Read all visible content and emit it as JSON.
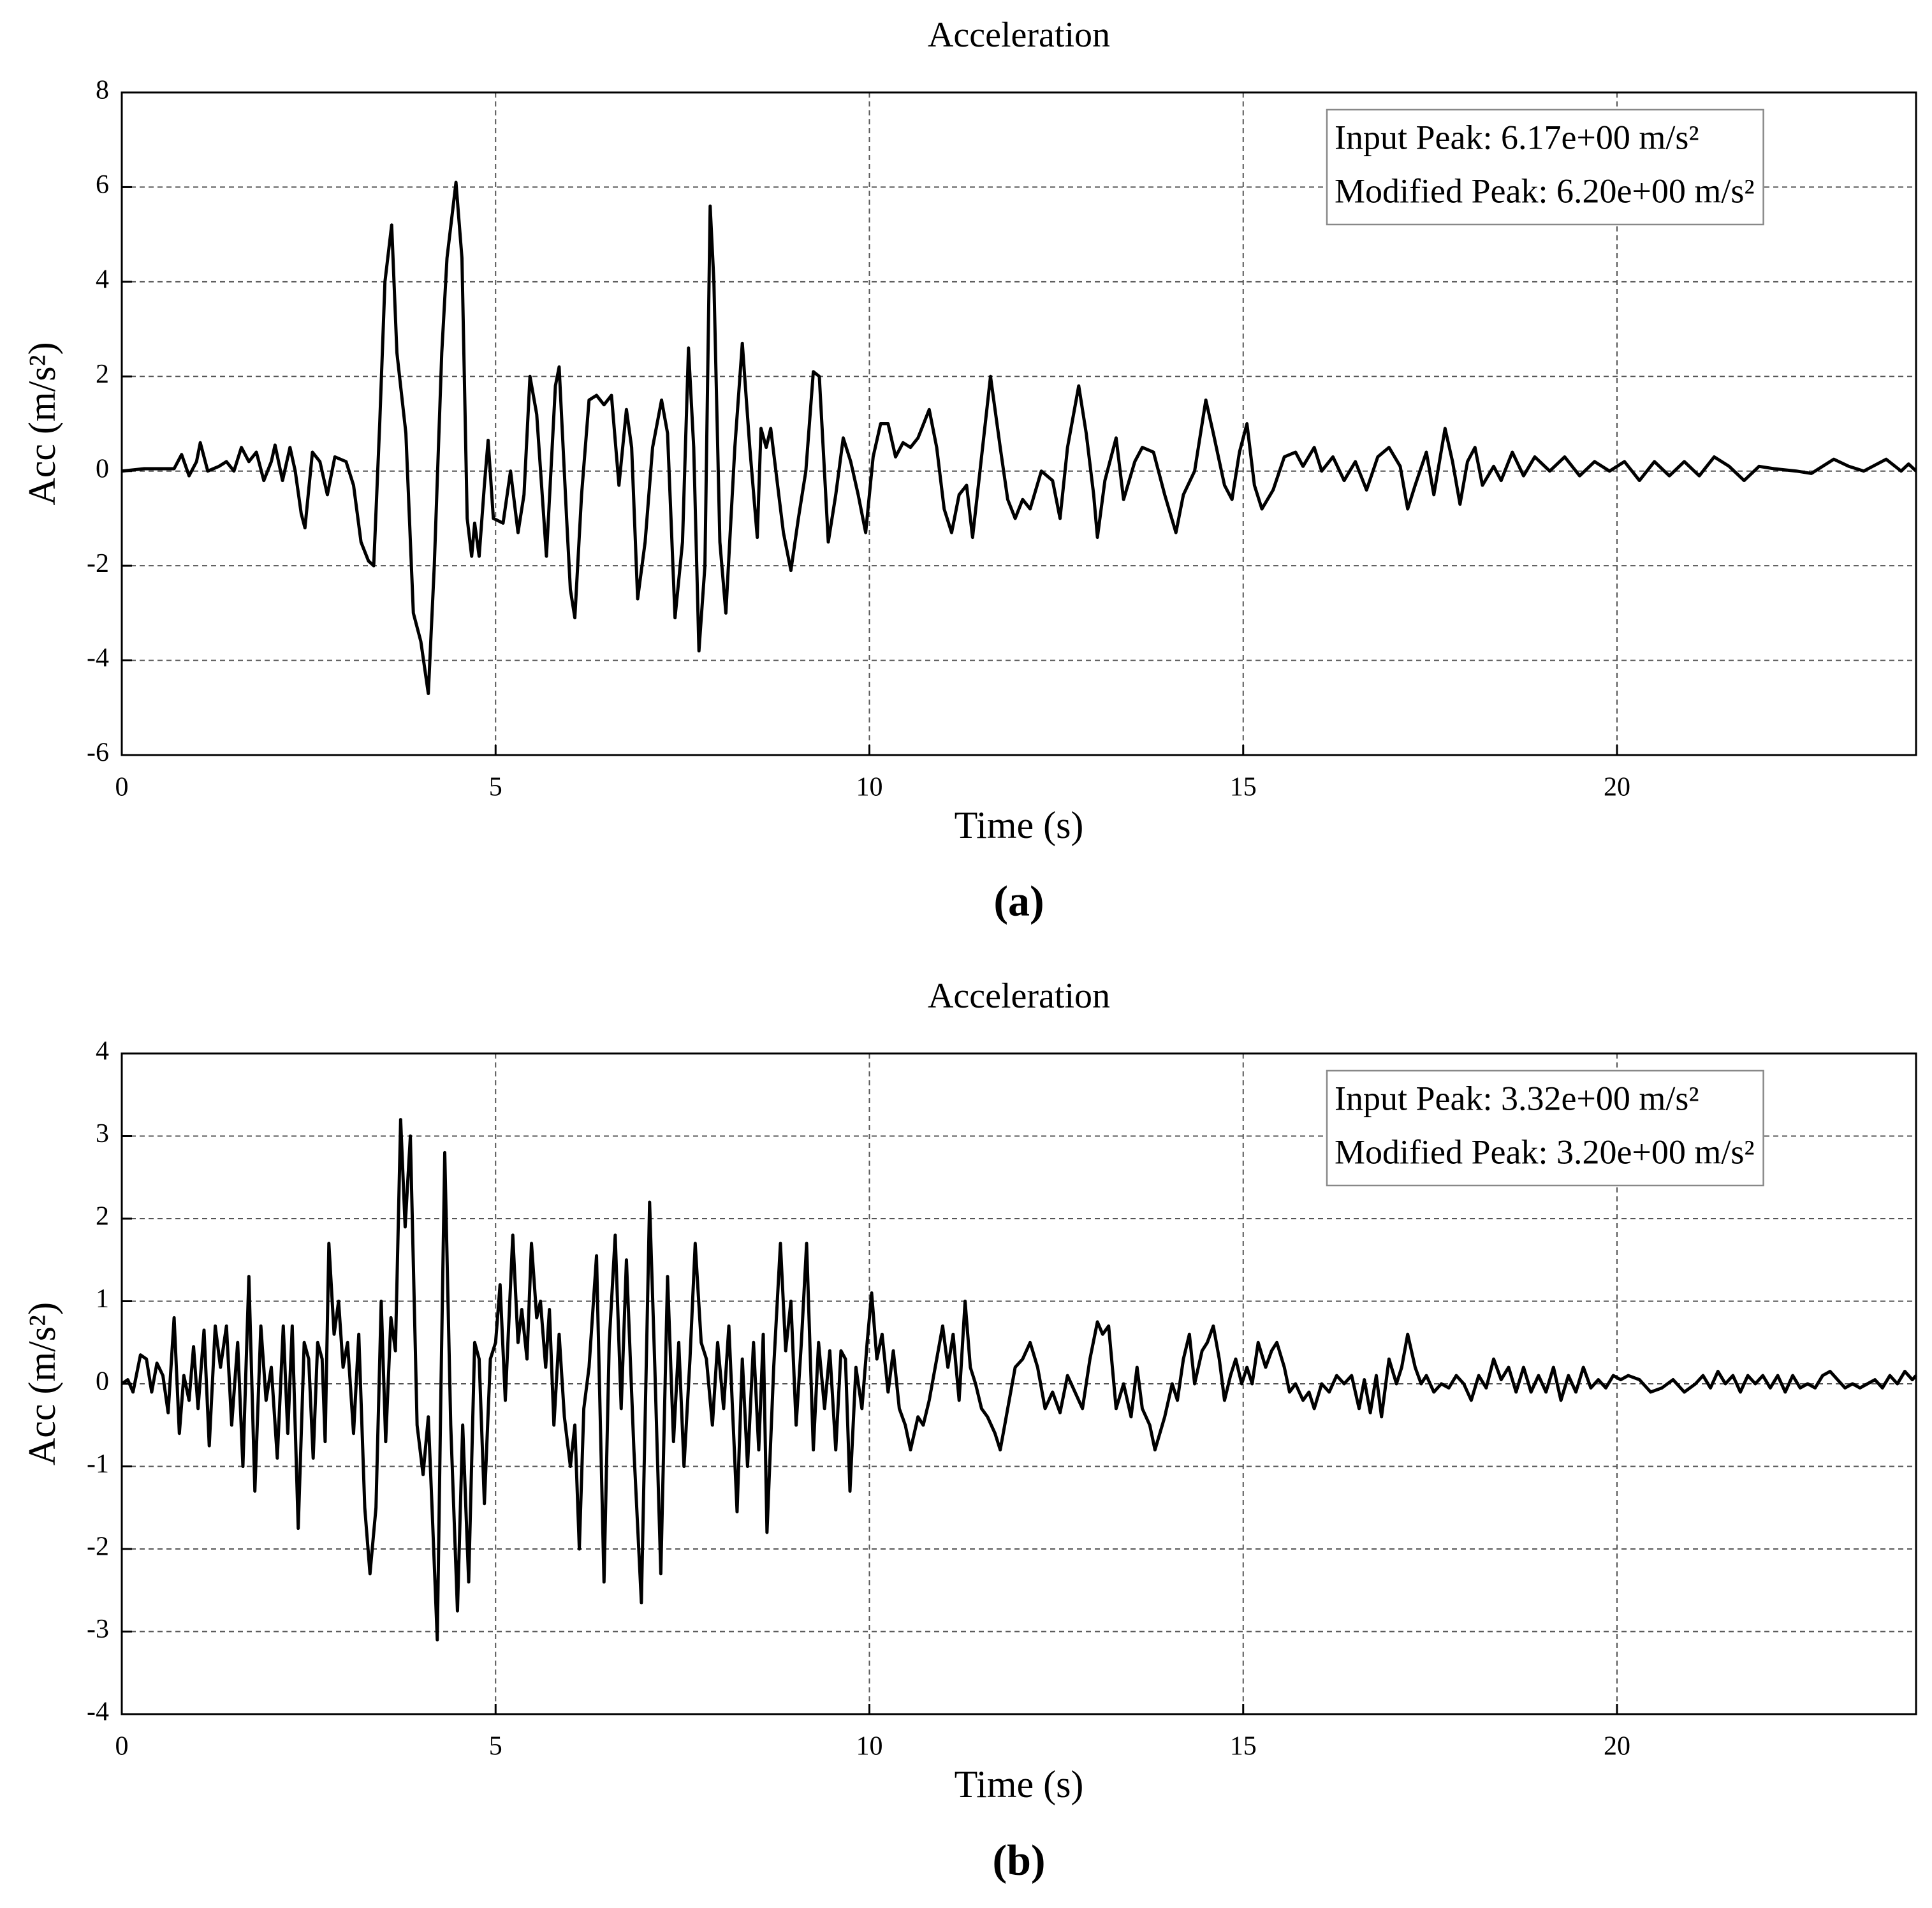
{
  "chart_data": [
    {
      "type": "line",
      "title": "Acceleration",
      "xlabel": "Time (s)",
      "ylabel": "Acc (m/s²)",
      "caption": "(a)",
      "annotations": [
        "Input Peak: 6.17e+00 m/s²",
        "Modified Peak: 6.20e+00 m/s²"
      ],
      "color": "#000000",
      "grid": true,
      "xlim": [
        0,
        24
      ],
      "xticks": [
        0,
        5,
        10,
        15,
        20
      ],
      "ylim": [
        -6,
        8
      ],
      "yticks": [
        -6,
        -4,
        -2,
        0,
        2,
        4,
        6,
        8
      ],
      "x": [
        0,
        0.3,
        0.7,
        0.8,
        0.9,
        1.0,
        1.05,
        1.15,
        1.3,
        1.4,
        1.5,
        1.6,
        1.7,
        1.8,
        1.9,
        2.0,
        2.05,
        2.15,
        2.25,
        2.32,
        2.4,
        2.45,
        2.55,
        2.65,
        2.75,
        2.85,
        3.0,
        3.1,
        3.2,
        3.3,
        3.37,
        3.45,
        3.52,
        3.61,
        3.68,
        3.8,
        3.9,
        4.0,
        4.1,
        4.18,
        4.28,
        4.35,
        4.47,
        4.55,
        4.62,
        4.68,
        4.72,
        4.78,
        4.85,
        4.9,
        4.97,
        5.1,
        5.2,
        5.3,
        5.38,
        5.46,
        5.55,
        5.68,
        5.8,
        5.85,
        5.95,
        6.0,
        6.06,
        6.15,
        6.25,
        6.35,
        6.45,
        6.55,
        6.65,
        6.75,
        6.82,
        6.9,
        7.0,
        7.1,
        7.22,
        7.3,
        7.4,
        7.5,
        7.58,
        7.65,
        7.72,
        7.8,
        7.87,
        7.92,
        8.0,
        8.08,
        8.2,
        8.3,
        8.4,
        8.5,
        8.55,
        8.62,
        8.68,
        8.78,
        8.85,
        8.95,
        9.05,
        9.15,
        9.25,
        9.33,
        9.45,
        9.55,
        9.65,
        9.75,
        9.85,
        9.95,
        10.05,
        10.15,
        10.25,
        10.35,
        10.45,
        10.55,
        10.65,
        10.8,
        10.9,
        11.0,
        11.1,
        11.2,
        11.3,
        11.38,
        11.5,
        11.62,
        11.75,
        11.85,
        11.95,
        12.05,
        12.15,
        12.3,
        12.45,
        12.55,
        12.65,
        12.8,
        12.9,
        13.0,
        13.05,
        13.15,
        13.3,
        13.4,
        13.55,
        13.65,
        13.8,
        13.95,
        14.1,
        14.2,
        14.35,
        14.5,
        14.6,
        14.75,
        14.85,
        14.95,
        15.05,
        15.15,
        15.25,
        15.4,
        15.55,
        15.7,
        15.8,
        15.95,
        16.05,
        16.2,
        16.35,
        16.5,
        16.65,
        16.8,
        16.95,
        17.1,
        17.2,
        17.3,
        17.45,
        17.55,
        17.7,
        17.8,
        17.9,
        18.0,
        18.1,
        18.2,
        18.35,
        18.45,
        18.6,
        18.75,
        18.9,
        19.1,
        19.3,
        19.5,
        19.7,
        19.9,
        20.1,
        20.3,
        20.5,
        20.7,
        20.9,
        21.1,
        21.3,
        21.5,
        21.7,
        21.9,
        22.1,
        22.4,
        22.6,
        22.9,
        23.1,
        23.3,
        23.6,
        23.8,
        23.9,
        24.0
      ],
      "values": [
        0,
        0.05,
        0.05,
        0.35,
        -0.1,
        0.2,
        0.6,
        0,
        0.1,
        0.2,
        0,
        0.5,
        0.2,
        0.4,
        -0.2,
        0.2,
        0.55,
        -0.2,
        0.5,
        0,
        -0.9,
        -1.2,
        0.4,
        0.2,
        -0.5,
        0.3,
        0.2,
        -0.3,
        -1.5,
        -1.9,
        -2.0,
        1.0,
        4.0,
        5.2,
        2.5,
        0.8,
        -3.0,
        -3.6,
        -4.7,
        -2.0,
        2.5,
        4.5,
        6.1,
        4.5,
        -1.0,
        -1.8,
        -1.1,
        -1.8,
        -0.3,
        0.65,
        -1.0,
        -1.1,
        0,
        -1.3,
        -0.5,
        2.0,
        1.2,
        -1.8,
        1.8,
        2.2,
        -1.0,
        -2.5,
        -3.1,
        -0.5,
        1.5,
        1.6,
        1.4,
        1.6,
        -0.3,
        1.3,
        0.5,
        -2.7,
        -1.5,
        0.5,
        1.5,
        0.8,
        -3.1,
        -1.5,
        2.6,
        0.5,
        -3.8,
        -2.0,
        5.6,
        4,
        -1.5,
        -3.0,
        0.5,
        2.7,
        0.5,
        -1.4,
        0.9,
        0.5,
        0.9,
        -0.4,
        -1.3,
        -2.1,
        -1.0,
        0,
        2.1,
        2.0,
        -1.5,
        -0.5,
        0.7,
        0.2,
        -0.5,
        -1.3,
        0.3,
        1.0,
        1.0,
        0.3,
        0.6,
        0.5,
        0.7,
        1.3,
        0.5,
        -0.8,
        -1.3,
        -0.5,
        -0.3,
        -1.4,
        0.3,
        2.0,
        0.5,
        -0.6,
        -1.0,
        -0.6,
        -0.8,
        0.0,
        -0.2,
        -1.0,
        0.5,
        1.8,
        0.8,
        -0.5,
        -1.4,
        -0.2,
        0.7,
        -0.6,
        0.2,
        0.5,
        0.4,
        -0.5,
        -1.3,
        -0.5,
        0.0,
        1.5,
        0.8,
        -0.3,
        -0.6,
        0.4,
        1.0,
        -0.3,
        -0.8,
        -0.4,
        0.3,
        0.4,
        0.1,
        0.5,
        0.0,
        0.3,
        -0.2,
        0.2,
        -0.4,
        0.3,
        0.5,
        0.1,
        -0.8,
        -0.3,
        0.4,
        -0.5,
        0.9,
        0.2,
        -0.7,
        0.2,
        0.5,
        -0.3,
        0.1,
        -0.2,
        0.4,
        -0.1,
        0.3,
        0,
        0.3,
        -0.1,
        0.2,
        0,
        0.2,
        -0.2,
        0.2,
        -0.1,
        0.2,
        -0.1,
        0.3,
        0.1,
        -0.2,
        0.1,
        0.05,
        0,
        -0.05,
        0.25,
        0.1,
        0,
        0.25,
        0,
        0.15,
        0
      ]
    },
    {
      "type": "line",
      "title": "Acceleration",
      "xlabel": "Time (s)",
      "ylabel": "Acc (m/s²)",
      "caption": "(b)",
      "annotations": [
        "Input Peak: 3.32e+00 m/s²",
        "Modified Peak: 3.20e+00 m/s²"
      ],
      "color": "#000000",
      "grid": true,
      "xlim": [
        0,
        24
      ],
      "xticks": [
        0,
        5,
        10,
        15,
        20
      ],
      "ylim": [
        -4,
        4
      ],
      "yticks": [
        -4,
        -3,
        -2,
        -1,
        0,
        1,
        2,
        3,
        4
      ],
      "x": [
        0,
        0.08,
        0.15,
        0.25,
        0.33,
        0.4,
        0.47,
        0.55,
        0.62,
        0.7,
        0.77,
        0.83,
        0.9,
        0.96,
        1.02,
        1.1,
        1.17,
        1.25,
        1.32,
        1.4,
        1.47,
        1.55,
        1.62,
        1.7,
        1.78,
        1.86,
        1.93,
        2.0,
        2.08,
        2.16,
        2.22,
        2.28,
        2.36,
        2.44,
        2.5,
        2.56,
        2.62,
        2.68,
        2.72,
        2.77,
        2.84,
        2.9,
        2.96,
        3.02,
        3.1,
        3.17,
        3.25,
        3.32,
        3.4,
        3.47,
        3.53,
        3.6,
        3.66,
        3.73,
        3.79,
        3.86,
        3.95,
        4.03,
        4.1,
        4.15,
        4.22,
        4.27,
        4.32,
        4.4,
        4.49,
        4.56,
        4.64,
        4.72,
        4.78,
        4.85,
        4.93,
        5.0,
        5.06,
        5.13,
        5.23,
        5.3,
        5.35,
        5.42,
        5.48,
        5.55,
        5.6,
        5.67,
        5.72,
        5.78,
        5.85,
        5.92,
        6.0,
        6.06,
        6.12,
        6.18,
        6.25,
        6.35,
        6.45,
        6.52,
        6.6,
        6.68,
        6.75,
        6.85,
        6.95,
        7.06,
        7.13,
        7.21,
        7.3,
        7.38,
        7.45,
        7.52,
        7.6,
        7.67,
        7.75,
        7.82,
        7.9,
        7.97,
        8.05,
        8.12,
        8.23,
        8.3,
        8.37,
        8.45,
        8.52,
        8.58,
        8.63,
        8.72,
        8.81,
        8.88,
        8.95,
        9.02,
        9.09,
        9.16,
        9.25,
        9.32,
        9.4,
        9.47,
        9.55,
        9.62,
        9.68,
        9.74,
        9.82,
        9.9,
        9.97,
        10.03,
        10.1,
        10.17,
        10.25,
        10.32,
        10.4,
        10.48,
        10.55,
        10.65,
        10.72,
        10.8,
        10.9,
        10.98,
        11.05,
        11.12,
        11.2,
        11.28,
        11.35,
        11.42,
        11.5,
        11.58,
        11.68,
        11.75,
        11.85,
        11.95,
        12.05,
        12.15,
        12.25,
        12.35,
        12.45,
        12.55,
        12.65,
        12.75,
        12.85,
        12.95,
        13.05,
        13.12,
        13.2,
        13.3,
        13.4,
        13.5,
        13.58,
        13.65,
        13.75,
        13.82,
        13.95,
        14.05,
        14.12,
        14.2,
        14.28,
        14.35,
        14.45,
        14.52,
        14.6,
        14.68,
        14.75,
        14.83,
        14.9,
        14.98,
        15.05,
        15.12,
        15.2,
        15.3,
        15.38,
        15.45,
        15.55,
        15.62,
        15.7,
        15.8,
        15.88,
        15.95,
        16.05,
        16.15,
        16.25,
        16.35,
        16.45,
        16.55,
        16.62,
        16.7,
        16.78,
        16.85,
        16.95,
        17.05,
        17.12,
        17.2,
        17.3,
        17.38,
        17.45,
        17.55,
        17.65,
        17.75,
        17.85,
        17.95,
        18.05,
        18.15,
        18.25,
        18.35,
        18.45,
        18.55,
        18.65,
        18.75,
        18.85,
        18.95,
        19.05,
        19.15,
        19.25,
        19.35,
        19.45,
        19.55,
        19.65,
        19.75,
        19.85,
        19.95,
        20.05,
        20.15,
        20.3,
        20.45,
        20.6,
        20.75,
        20.9,
        21.05,
        21.15,
        21.25,
        21.35,
        21.45,
        21.55,
        21.65,
        21.75,
        21.85,
        21.95,
        22.05,
        22.15,
        22.25,
        22.35,
        22.45,
        22.55,
        22.65,
        22.75,
        22.85,
        22.95,
        23.05,
        23.15,
        23.25,
        23.35,
        23.45,
        23.55,
        23.65,
        23.75,
        23.85,
        23.95,
        24.0
      ],
      "values": [
        0,
        0.05,
        -0.1,
        0.35,
        0.3,
        -0.1,
        0.25,
        0.1,
        -0.35,
        0.8,
        -0.6,
        0.1,
        -0.2,
        0.45,
        -0.3,
        0.65,
        -0.75,
        0.7,
        0.2,
        0.7,
        -0.5,
        0.5,
        -1.0,
        1.3,
        -1.3,
        0.7,
        -0.2,
        0.2,
        -0.9,
        0.7,
        -0.6,
        0.7,
        -1.75,
        0.5,
        0.3,
        -0.9,
        0.5,
        0.3,
        -0.7,
        1.7,
        0.6,
        1.0,
        0.2,
        0.5,
        -0.6,
        0.6,
        -1.5,
        -2.3,
        -1.5,
        1.0,
        -0.7,
        0.8,
        0.4,
        3.2,
        1.9,
        3.0,
        -0.5,
        -1.1,
        -0.4,
        -1.5,
        -3.1,
        0,
        2.8,
        -0.5,
        -2.75,
        -0.5,
        -2.4,
        0.5,
        0.3,
        -1.45,
        0.3,
        0.5,
        1.2,
        -0.2,
        1.8,
        0.5,
        0.9,
        0.3,
        1.7,
        0.8,
        1.0,
        0.2,
        0.9,
        -0.5,
        0.6,
        -0.4,
        -1.0,
        -0.5,
        -2.0,
        -0.3,
        0.2,
        1.55,
        -2.4,
        0.5,
        1.8,
        -0.3,
        1.5,
        -0.8,
        -2.65,
        2.2,
        0.2,
        -2.3,
        1.3,
        -0.7,
        0.5,
        -1.0,
        0.3,
        1.7,
        0.5,
        0.3,
        -0.5,
        0.5,
        -0.3,
        0.7,
        -1.55,
        0.3,
        -1.0,
        0.5,
        -0.8,
        0.6,
        -1.8,
        0.2,
        1.7,
        0.4,
        1.0,
        -0.5,
        0.5,
        1.7,
        -0.8,
        0.5,
        -0.3,
        0.4,
        -0.8,
        0.4,
        0.3,
        -1.3,
        0.2,
        -0.3,
        0.5,
        1.1,
        0.3,
        0.6,
        -0.1,
        0.4,
        -0.3,
        -0.5,
        -0.8,
        -0.4,
        -0.5,
        -0.2,
        0.3,
        0.7,
        0.2,
        0.6,
        -0.2,
        1.0,
        0.2,
        0.0,
        -0.3,
        -0.4,
        -0.6,
        -0.8,
        -0.3,
        0.2,
        0.3,
        0.5,
        0.2,
        -0.3,
        -0.1,
        -0.35,
        0.1,
        -0.1,
        -0.3,
        0.3,
        0.75,
        0.6,
        0.7,
        -0.3,
        0.0,
        -0.4,
        0.2,
        -0.3,
        -0.5,
        -0.8,
        -0.4,
        0.0,
        -0.2,
        0.3,
        0.6,
        0.0,
        0.4,
        0.5,
        0.7,
        0.3,
        -0.2,
        0.1,
        0.3,
        0.0,
        0.2,
        0.0,
        0.5,
        0.2,
        0.4,
        0.5,
        0.2,
        -0.1,
        0.0,
        -0.2,
        -0.1,
        -0.3,
        0.0,
        -0.1,
        0.1,
        0.0,
        0.1,
        -0.3,
        0.05,
        -0.35,
        0.1,
        -0.4,
        0.3,
        0.0,
        0.2,
        0.6,
        0.2,
        0.0,
        0.1,
        -0.1,
        0.0,
        -0.05,
        0.1,
        0.0,
        -0.2,
        0.1,
        -0.05,
        0.3,
        0.05,
        0.2,
        -0.1,
        0.2,
        -0.1,
        0.1,
        -0.1,
        0.2,
        -0.2,
        0.1,
        -0.1,
        0.2,
        -0.05,
        0.05,
        -0.05,
        0.1,
        0.05,
        0.1,
        0.05,
        -0.1,
        -0.05,
        0.05,
        -0.1,
        0.0,
        0.1,
        -0.05,
        0.15,
        0.0,
        0.1,
        -0.1,
        0.1,
        0.0,
        0.1,
        -0.05,
        0.1,
        -0.1,
        0.1,
        -0.05,
        0.0,
        -0.05,
        0.1,
        0.15,
        0.05,
        -0.05,
        0.0,
        -0.05,
        0.0,
        0.05,
        -0.05,
        0.1,
        0.0,
        0.15,
        0.05,
        0.1
      ]
    }
  ]
}
